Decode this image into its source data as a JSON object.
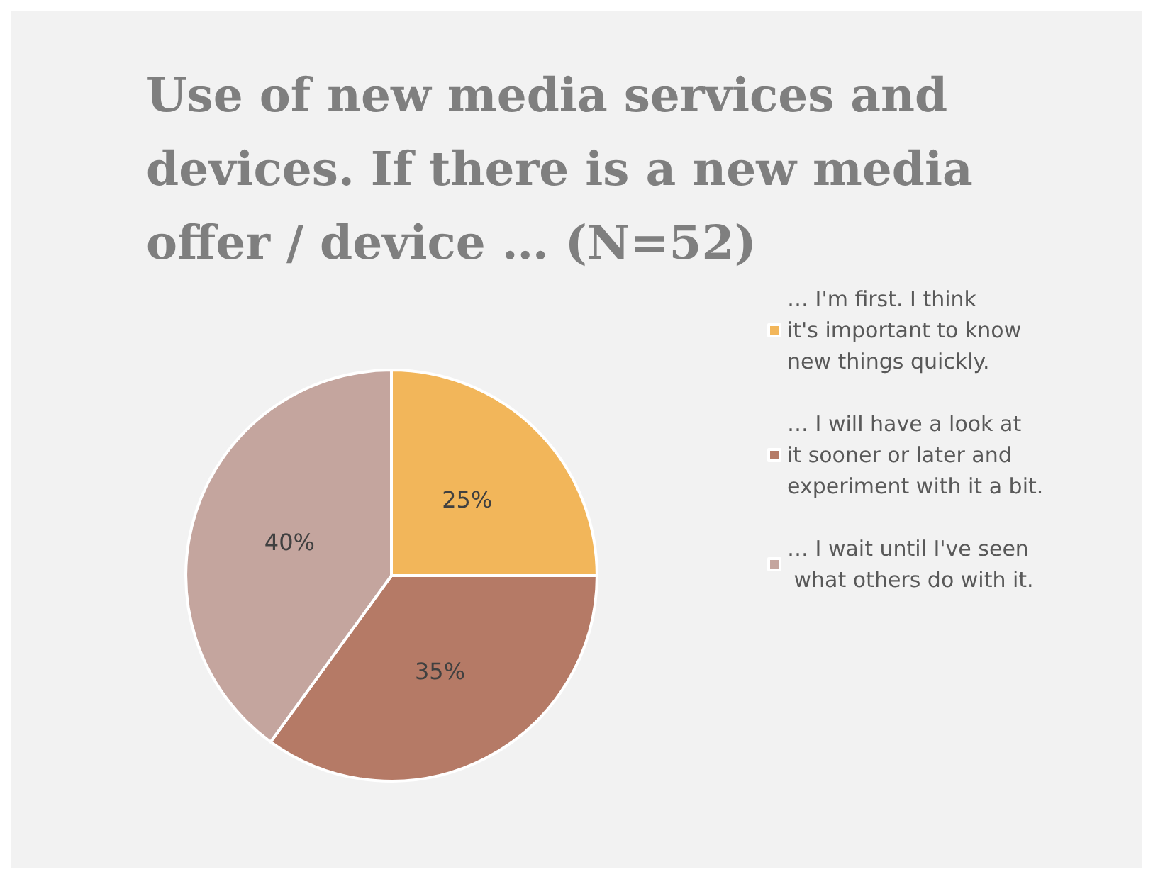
{
  "chart_data": {
    "type": "pie",
    "title": "Use of new media services and devices. If there is a new media offer / device … (N=52)",
    "categories": [
      "… I'm first. I think it's important to know new things quickly.",
      "… I will have a look at it sooner or later and experiment with it a bit.",
      "… I wait until I've seen what others do with it."
    ],
    "values": [
      25,
      35,
      40
    ],
    "colors": [
      "#f2b65a",
      "#b57a66",
      "#c4a59e"
    ],
    "value_labels": [
      "25%",
      "35%",
      "40%"
    ],
    "legend": "right"
  }
}
